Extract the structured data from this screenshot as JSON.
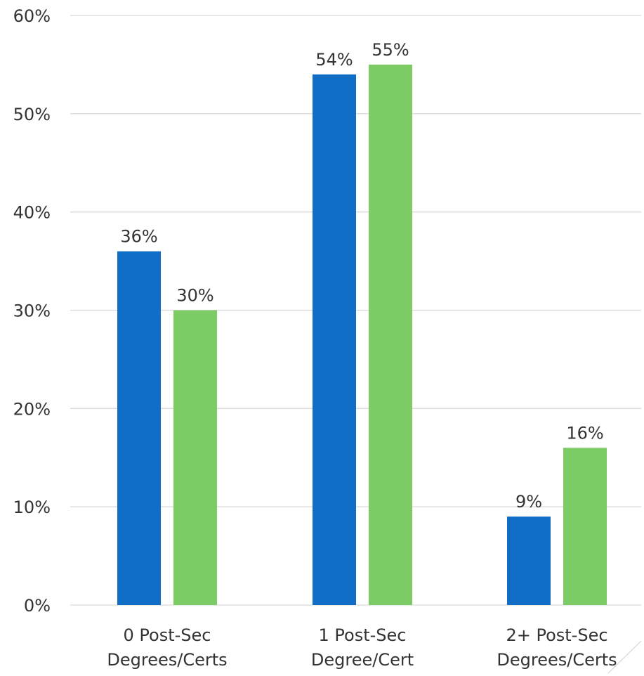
{
  "chart_data": {
    "type": "bar",
    "categories": [
      [
        "0 Post-Sec",
        "Degrees/Certs"
      ],
      [
        "1 Post-Sec",
        "Degree/Cert"
      ],
      [
        "2+ Post-Sec",
        "Degrees/Certs"
      ]
    ],
    "series": [
      {
        "values": [
          36,
          54,
          9
        ],
        "color": "#116ec7"
      },
      {
        "values": [
          30,
          55,
          16
        ],
        "color": "#7dcb64"
      }
    ],
    "data_labels": [
      [
        "36%",
        "54%",
        "9%"
      ],
      [
        "30%",
        "55%",
        "16%"
      ]
    ],
    "ylim": [
      0,
      60
    ],
    "yticks": [
      0,
      10,
      20,
      30,
      40,
      50,
      60
    ],
    "ytick_labels": [
      "0%",
      "10%",
      "20%",
      "30%",
      "40%",
      "50%",
      "60%"
    ],
    "grid": true,
    "legend": "none",
    "title": "",
    "xlabel": "",
    "ylabel": ""
  }
}
